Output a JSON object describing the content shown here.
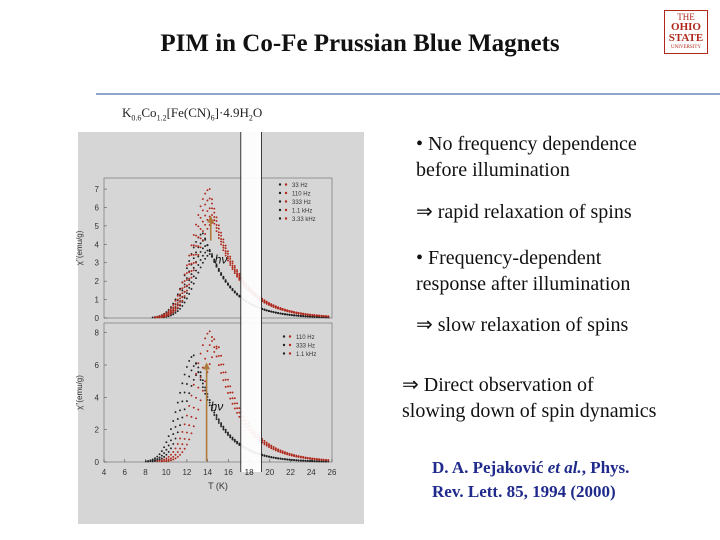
{
  "slide": {
    "title": "PIM in Co-Fe Prussian Blue Magnets",
    "logo": {
      "line1": "THE",
      "line2": "OHIO STATE",
      "line3": "UNIVERSITY"
    },
    "formula": {
      "k": "K",
      "k_sub": "0.6",
      "co": "Co",
      "co_sub": "1.2",
      "fe": "[Fe(CN)",
      "fe_sub": "6",
      "tail": "]·4.9H",
      "h_sub": "2",
      "o": "O"
    },
    "bullets": [
      "• No frequency dependence",
      "before illumination",
      "⇒ rapid relaxation of spins",
      "• Frequency-dependent",
      "response after illumination",
      "⇒ slow relaxation of spins",
      "⇒  Direct observation of",
      "slowing  down of spin dynamics"
    ],
    "citation": {
      "line1_a": "D. A. Pejaković ",
      "line1_b": "et al.",
      "line1_c": ", Phys.",
      "line2": "Rev. Lett. 85, 1994 (2000)"
    },
    "accent_colors": {
      "red": "#b0281c",
      "black": "#222222",
      "arrow": "#b07a3a",
      "panel_bg": "#d6d6d6",
      "title_rule": "#8fa4c9",
      "citation": "#1f2a8c"
    }
  },
  "chart_data": [
    {
      "type": "scatter",
      "panel": "top",
      "ylabel": "χ''(emu/g)",
      "xlim": [
        4,
        26
      ],
      "ylim": [
        0,
        7.6
      ],
      "yticks": [
        0,
        1,
        2,
        3,
        4,
        5,
        6,
        7
      ],
      "annotation": "hν",
      "legend_position": "top-right",
      "series": [
        {
          "name": "33 Hz",
          "color": "#222222",
          "state": "before",
          "peak_x": 13.6,
          "peak_y": 4.6,
          "width": 3.4,
          "tail": 1.0
        },
        {
          "name": "110 Hz",
          "color": "#222222",
          "state": "before",
          "peak_x": 13.8,
          "peak_y": 4.25,
          "width": 3.4,
          "tail": 0.9
        },
        {
          "name": "333 Hz",
          "color": "#222222",
          "state": "before",
          "peak_x": 14.0,
          "peak_y": 3.95,
          "width": 3.4,
          "tail": 0.8
        },
        {
          "name": "1.1 kHz",
          "color": "#222222",
          "state": "before",
          "peak_x": 14.2,
          "peak_y": 3.7,
          "width": 3.4,
          "tail": 0.7
        },
        {
          "name": "3.33 kHz",
          "color": "#222222",
          "state": "before",
          "peak_x": 14.4,
          "peak_y": 3.5,
          "width": 3.4,
          "tail": 0.6
        },
        {
          "name": "33 Hz",
          "color": "#b0281c",
          "state": "after",
          "peak_x": 14.2,
          "peak_y": 7.0,
          "width": 3.6,
          "tail": 1.2
        },
        {
          "name": "110 Hz",
          "color": "#b0281c",
          "state": "after",
          "peak_x": 14.3,
          "peak_y": 6.5,
          "width": 3.6,
          "tail": 1.1
        },
        {
          "name": "333 Hz",
          "color": "#b0281c",
          "state": "after",
          "peak_x": 14.4,
          "peak_y": 6.0,
          "width": 3.6,
          "tail": 1.0
        },
        {
          "name": "1.1 kHz",
          "color": "#b0281c",
          "state": "after",
          "peak_x": 14.5,
          "peak_y": 5.6,
          "width": 3.6,
          "tail": 0.9
        },
        {
          "name": "3.33 kHz",
          "color": "#b0281c",
          "state": "after",
          "peak_x": 14.6,
          "peak_y": 5.2,
          "width": 3.6,
          "tail": 0.8
        }
      ]
    },
    {
      "type": "scatter",
      "panel": "bottom",
      "xlabel": "T (K)",
      "ylabel": "χ''(emu/g)",
      "xlim": [
        4,
        26
      ],
      "ylim": [
        0,
        8.6
      ],
      "xticks": [
        4,
        6,
        8,
        10,
        12,
        14,
        16,
        18,
        20,
        22,
        24,
        26
      ],
      "yticks": [
        0,
        2,
        4,
        6,
        8
      ],
      "annotation": "hν",
      "legend_position": "top-right",
      "series": [
        {
          "name": "110 Hz",
          "color": "#222222",
          "state": "before",
          "peak_x": 12.7,
          "peak_y": 6.6,
          "width": 3.2,
          "tail": 1.0
        },
        {
          "name": "333 Hz",
          "color": "#222222",
          "state": "before",
          "peak_x": 13.0,
          "peak_y": 6.1,
          "width": 3.2,
          "tail": 0.9
        },
        {
          "name": "1.1 kHz",
          "color": "#222222",
          "state": "before",
          "peak_x": 13.3,
          "peak_y": 5.6,
          "width": 3.2,
          "tail": 0.8
        },
        {
          "name": "110 Hz",
          "color": "#b0281c",
          "state": "after",
          "peak_x": 14.3,
          "peak_y": 8.1,
          "width": 3.5,
          "tail": 1.3
        },
        {
          "name": "333 Hz",
          "color": "#b0281c",
          "state": "after",
          "peak_x": 14.7,
          "peak_y": 7.6,
          "width": 3.5,
          "tail": 1.2
        },
        {
          "name": "1.1 kHz",
          "color": "#b0281c",
          "state": "after",
          "peak_x": 15.1,
          "peak_y": 7.1,
          "width": 3.5,
          "tail": 1.1
        }
      ]
    }
  ]
}
